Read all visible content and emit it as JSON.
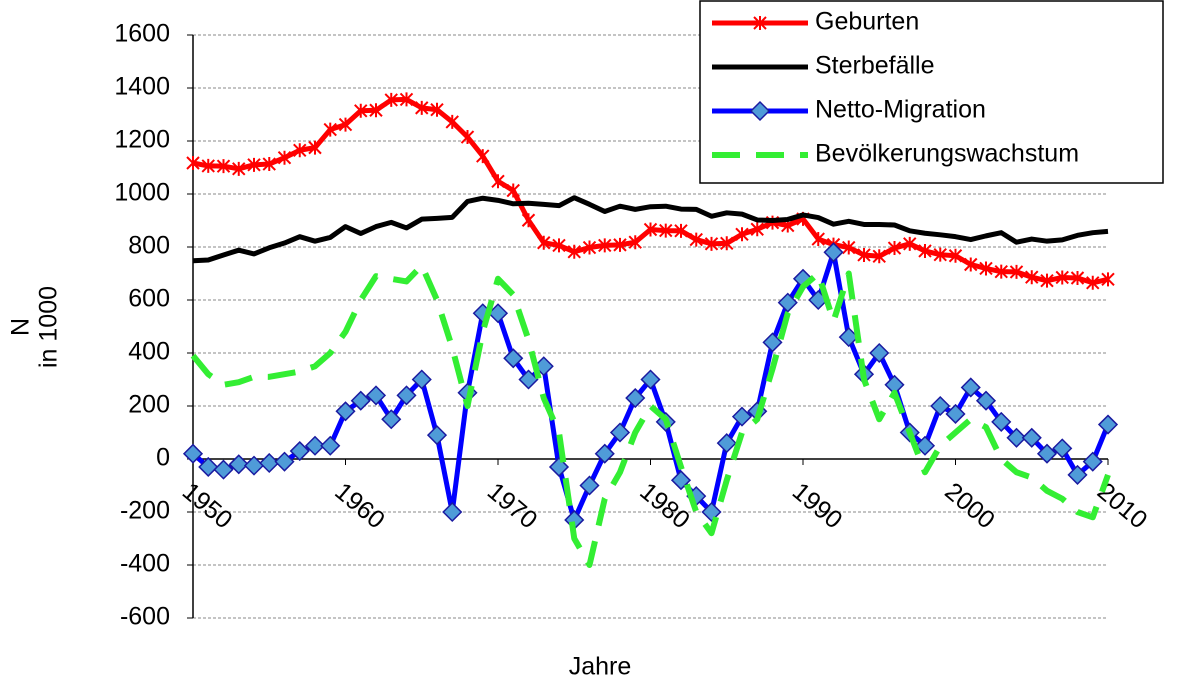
{
  "chart_data": {
    "type": "line",
    "xlabel": "Jahre",
    "ylabel": [
      "N",
      "in 1000"
    ],
    "x": [
      1950,
      1951,
      1952,
      1953,
      1954,
      1955,
      1956,
      1957,
      1958,
      1959,
      1960,
      1961,
      1962,
      1963,
      1964,
      1965,
      1966,
      1967,
      1968,
      1969,
      1970,
      1971,
      1972,
      1973,
      1974,
      1975,
      1976,
      1977,
      1978,
      1979,
      1980,
      1981,
      1982,
      1983,
      1984,
      1985,
      1986,
      1987,
      1988,
      1989,
      1990,
      1991,
      1992,
      1993,
      1994,
      1995,
      1996,
      1997,
      1998,
      1999,
      2000,
      2001,
      2002,
      2003,
      2004,
      2005,
      2006,
      2007,
      2008,
      2009,
      2010
    ],
    "xlim": [
      1950,
      2010
    ],
    "xticks": [
      1950,
      1960,
      1970,
      1980,
      1990,
      2000,
      2010
    ],
    "ylim": [
      -600,
      1600
    ],
    "yticks": [
      -600,
      -400,
      -200,
      0,
      200,
      400,
      600,
      800,
      1000,
      1200,
      1400,
      1600
    ],
    "grid": true,
    "legend": "top-right",
    "series": [
      {
        "name": "Geburten",
        "color": "#ff0000",
        "marker": "star",
        "dashed": false,
        "values": [
          1117,
          1106,
          1105,
          1095,
          1110,
          1113,
          1137,
          1165,
          1175,
          1243,
          1262,
          1314,
          1316,
          1355,
          1357,
          1325,
          1318,
          1272,
          1215,
          1143,
          1048,
          1013,
          901,
          816,
          806,
          782,
          798,
          806,
          808,
          818,
          866,
          862,
          861,
          828,
          812,
          814,
          848,
          867,
          892,
          881,
          906,
          830,
          809,
          798,
          770,
          765,
          796,
          812,
          785,
          771,
          767,
          734,
          719,
          707,
          706,
          686,
          673,
          685,
          683,
          665,
          678
        ]
      },
      {
        "name": "Sterbefälle",
        "color": "#000000",
        "marker": null,
        "dashed": false,
        "values": [
          748,
          751,
          770,
          788,
          774,
          797,
          815,
          839,
          822,
          836,
          877,
          851,
          877,
          893,
          872,
          905,
          908,
          912,
          972,
          984,
          976,
          963,
          965,
          961,
          956,
          986,
          961,
          934,
          954,
          942,
          952,
          954,
          943,
          942,
          916,
          929,
          924,
          902,
          900,
          904,
          921,
          911,
          886,
          897,
          885,
          885,
          883,
          861,
          852,
          846,
          839,
          828,
          842,
          854,
          818,
          830,
          822,
          827,
          844,
          854,
          859
        ]
      },
      {
        "name": "Netto-Migration",
        "color": "#0000ff",
        "marker": "diamond",
        "dashed": false,
        "values": [
          20,
          -30,
          -40,
          -20,
          -25,
          -15,
          -10,
          30,
          50,
          50,
          180,
          220,
          240,
          150,
          240,
          300,
          90,
          -200,
          250,
          550,
          550,
          380,
          300,
          350,
          -30,
          -230,
          -100,
          20,
          100,
          230,
          300,
          140,
          -80,
          -140,
          -200,
          60,
          160,
          180,
          440,
          590,
          680,
          600,
          780,
          460,
          320,
          400,
          280,
          100,
          50,
          200,
          170,
          270,
          220,
          140,
          80,
          80,
          20,
          40,
          -60,
          -10,
          130
        ]
      },
      {
        "name": "Bevölkerungswachstum",
        "color": "#33ee33",
        "marker": null,
        "dashed": true,
        "values": [
          390,
          320,
          280,
          290,
          310,
          310,
          320,
          330,
          350,
          400,
          480,
          600,
          690,
          680,
          670,
          730,
          600,
          420,
          200,
          480,
          680,
          620,
          450,
          230,
          100,
          -300,
          -400,
          -150,
          -50,
          100,
          200,
          150,
          -30,
          -200,
          -280,
          -80,
          100,
          150,
          340,
          550,
          650,
          700,
          520,
          700,
          300,
          150,
          250,
          100,
          -50,
          50,
          100,
          150,
          120,
          0,
          -50,
          -70,
          -120,
          -150,
          -200,
          -220,
          -60
        ]
      }
    ]
  }
}
